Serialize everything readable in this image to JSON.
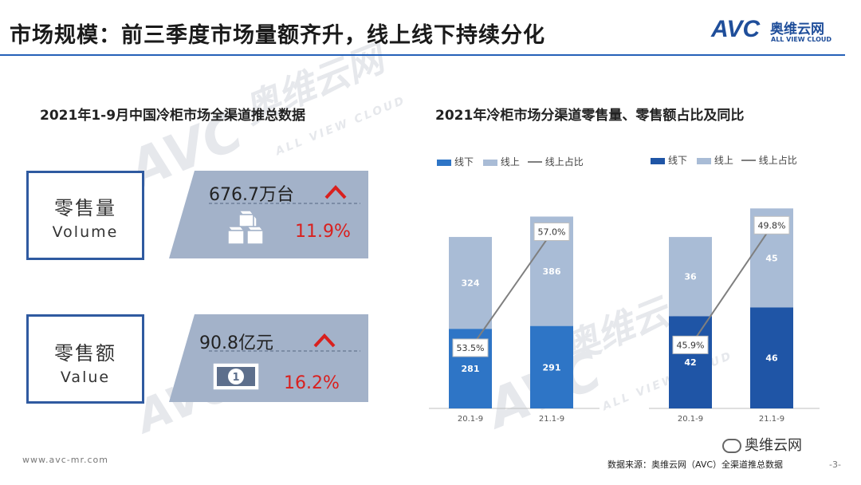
{
  "header": {
    "title": "市场规模：前三季度市场量额齐升，线上线下持续分化",
    "logo_text": "AVC",
    "logo_cn": "奥维云网",
    "logo_en": "ALL VIEW CLOUD"
  },
  "left_panel": {
    "subtitle": "2021年1-9月中国冷柜市场全渠道推总数据",
    "volume": {
      "label_cn": "零售量",
      "label_en": "Volume",
      "value": "676.7万台",
      "growth": "11.9%"
    },
    "value": {
      "label_cn": "零售额",
      "label_en": "Value",
      "value": "90.8亿元",
      "growth": "16.2%"
    }
  },
  "right_panel": {
    "subtitle": "2021年冷柜市场分渠道零售量、零售额占比及同比"
  },
  "chart_data": [
    {
      "type": "bar",
      "stacked": true,
      "title": "零售量",
      "categories": [
        "20.1-9",
        "21.1-9"
      ],
      "series": [
        {
          "name": "线下",
          "values": [
            281,
            291
          ],
          "color": "#2e75c6"
        },
        {
          "name": "线上",
          "values": [
            324,
            386
          ],
          "color": "#a9bcd6"
        }
      ],
      "line": {
        "name": "线上占比",
        "values": [
          53.5,
          57.0
        ],
        "labels": [
          "53.5%",
          "57.0%"
        ],
        "color": "#7f7f7f"
      },
      "ylim": [
        0,
        760
      ]
    },
    {
      "type": "bar",
      "stacked": true,
      "title": "零售额",
      "categories": [
        "20.1-9",
        "21.1-9"
      ],
      "series": [
        {
          "name": "线下",
          "values": [
            42,
            46
          ],
          "color": "#1f55a6"
        },
        {
          "name": "线上",
          "values": [
            36,
            45
          ],
          "color": "#a9bcd6"
        }
      ],
      "line": {
        "name": "线上占比",
        "values": [
          45.9,
          49.8
        ],
        "labels": [
          "45.9%",
          "49.8%"
        ],
        "color": "#7f7f7f"
      },
      "ylim": [
        0,
        98
      ]
    }
  ],
  "footer": {
    "website": "www.avc-mr.com",
    "source": "数据来源：奥维云网（AVC）全渠道推总数据",
    "page": "-3-",
    "wechat": "奥维云网"
  }
}
